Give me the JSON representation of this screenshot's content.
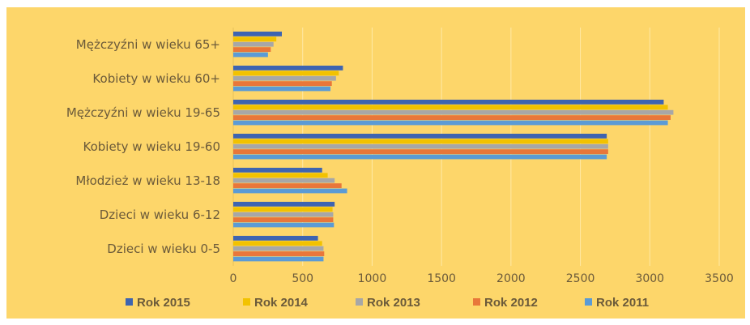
{
  "colors": {
    "background": "#fdd66a",
    "grid": "#ffe9a6",
    "text": "#6b5a3a"
  },
  "chart_data": {
    "type": "bar",
    "orientation": "horizontal",
    "title": "",
    "xlabel": "",
    "ylabel": "",
    "categories": [
      "Mężczyźni w wieku 65+",
      "Kobiety w wieku 60+",
      "Mężczyźni w wieku 19-65",
      "Kobiety w wieku 19-60",
      "Młodzież w wieku 13-18",
      "Dzieci w wieku 6-12",
      "Dzieci w wieku 0-5"
    ],
    "series": [
      {
        "name": "Rok 2015",
        "color": "#3e64b0",
        "values": [
          350,
          790,
          3100,
          2690,
          640,
          730,
          610
        ]
      },
      {
        "name": "Rok 2014",
        "color": "#f2c200",
        "values": [
          310,
          760,
          3130,
          2700,
          680,
          715,
          640
        ]
      },
      {
        "name": "Rok 2013",
        "color": "#a7a7a7",
        "values": [
          290,
          740,
          3170,
          2700,
          730,
          720,
          650
        ]
      },
      {
        "name": "Rok 2012",
        "color": "#e8773a",
        "values": [
          270,
          710,
          3150,
          2700,
          780,
          720,
          655
        ]
      },
      {
        "name": "Rok 2011",
        "color": "#5b9bd5",
        "values": [
          250,
          700,
          3130,
          2690,
          820,
          725,
          650
        ]
      }
    ],
    "xlim": [
      0,
      3500
    ],
    "xticks": [
      0,
      500,
      1000,
      1500,
      2000,
      2500,
      3000,
      3500
    ],
    "grid": true,
    "legend_position": "bottom"
  }
}
